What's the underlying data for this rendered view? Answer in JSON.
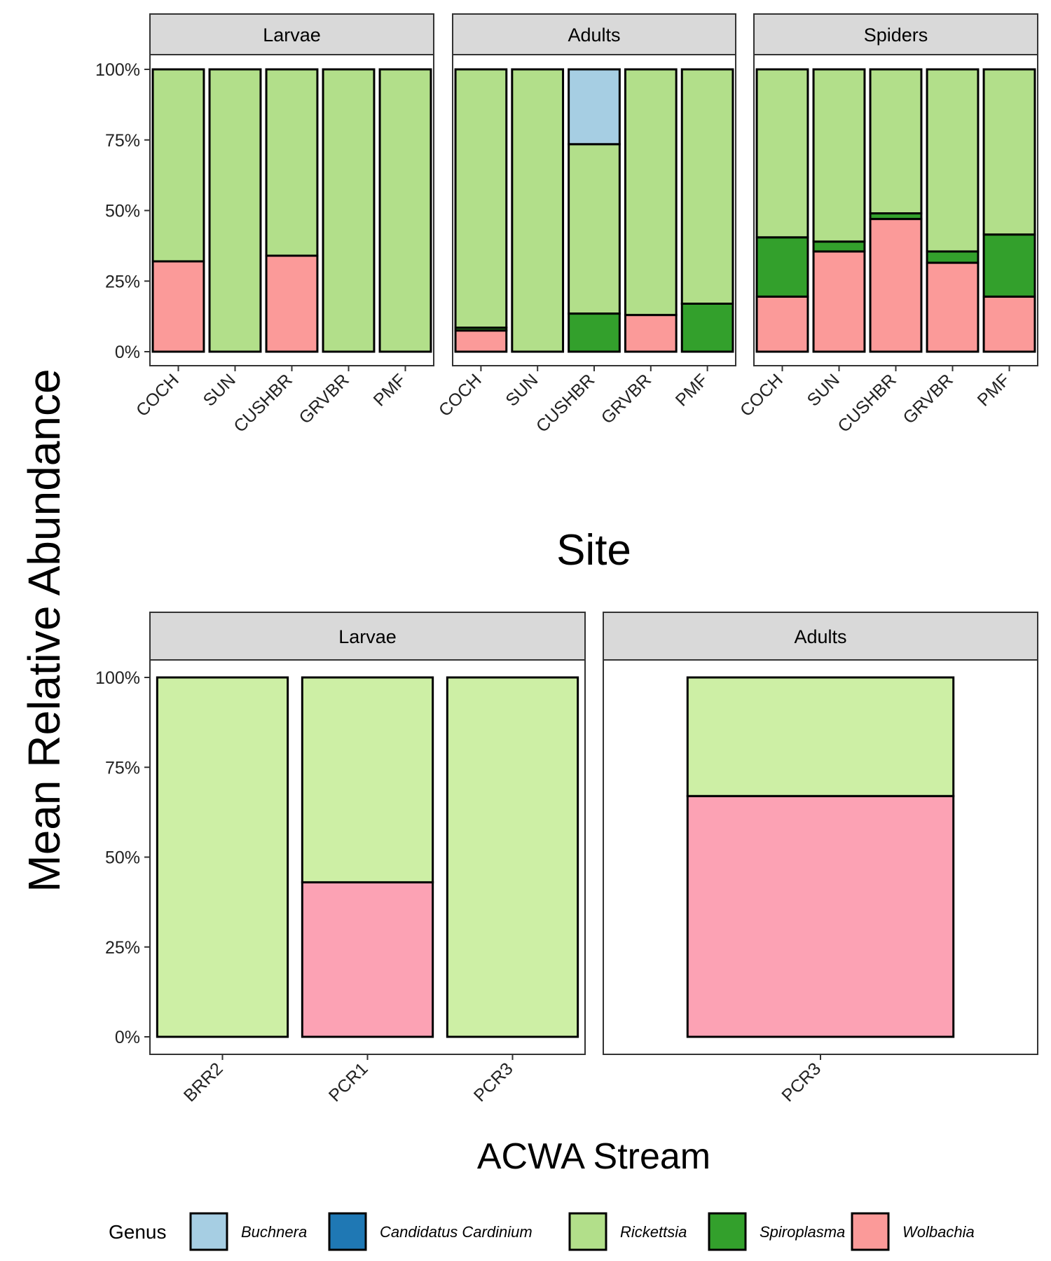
{
  "chart_data": [
    {
      "type": "bar",
      "stacked": true,
      "xlabel": "Site",
      "ylabel": "Mean Relative Abundance",
      "ylim": [
        0,
        1
      ],
      "yticks": [
        "0%",
        "25%",
        "50%",
        "75%",
        "100%"
      ],
      "grid": false,
      "panels": [
        {
          "label": "Larvae",
          "categories": [
            "COCH",
            "SUN",
            "CUSHBR",
            "GRVBR",
            "PMF"
          ],
          "series": [
            {
              "name": "Wolbachia",
              "values": [
                0.32,
                0,
                0.34,
                0,
                0
              ]
            },
            {
              "name": "Spiroplasma",
              "values": [
                0,
                0,
                0,
                0,
                0
              ]
            },
            {
              "name": "Rickettsia",
              "values": [
                0.68,
                1.0,
                0.66,
                1.0,
                1.0
              ]
            },
            {
              "name": "Candidatus Cardinium",
              "values": [
                0,
                0,
                0,
                0,
                0
              ]
            },
            {
              "name": "Buchnera",
              "values": [
                0,
                0,
                0,
                0,
                0
              ]
            }
          ]
        },
        {
          "label": "Adults",
          "categories": [
            "COCH",
            "SUN",
            "CUSHBR",
            "GRVBR",
            "PMF"
          ],
          "series": [
            {
              "name": "Wolbachia",
              "values": [
                0.075,
                0,
                0,
                0.13,
                0
              ]
            },
            {
              "name": "Spiroplasma",
              "values": [
                0.01,
                0,
                0.135,
                0,
                0.17
              ]
            },
            {
              "name": "Rickettsia",
              "values": [
                0.915,
                1.0,
                0.6,
                0.87,
                0.83
              ]
            },
            {
              "name": "Candidatus Cardinium",
              "values": [
                0,
                0,
                0,
                0,
                0
              ]
            },
            {
              "name": "Buchnera",
              "values": [
                0,
                0,
                0.265,
                0,
                0
              ]
            }
          ]
        },
        {
          "label": "Spiders",
          "categories": [
            "COCH",
            "SUN",
            "CUSHBR",
            "GRVBR",
            "PMF"
          ],
          "series": [
            {
              "name": "Wolbachia",
              "values": [
                0.195,
                0.355,
                0.47,
                0.315,
                0.195
              ]
            },
            {
              "name": "Spiroplasma",
              "values": [
                0.21,
                0.035,
                0.02,
                0.04,
                0.22
              ]
            },
            {
              "name": "Rickettsia",
              "values": [
                0.595,
                0.61,
                0.51,
                0.645,
                0.585
              ]
            },
            {
              "name": "Candidatus Cardinium",
              "values": [
                0,
                0,
                0,
                0,
                0
              ]
            },
            {
              "name": "Buchnera",
              "values": [
                0,
                0,
                0,
                0,
                0
              ]
            }
          ]
        }
      ]
    },
    {
      "type": "bar",
      "stacked": true,
      "xlabel": "ACWA Stream",
      "ylabel": "Mean Relative Abundance",
      "ylim": [
        0,
        1
      ],
      "yticks": [
        "0%",
        "25%",
        "50%",
        "75%",
        "100%"
      ],
      "grid": false,
      "panels": [
        {
          "label": "Larvae",
          "categories": [
            "BRR2",
            "PCR1",
            "PCR3"
          ],
          "series": [
            {
              "name": "Wolbachia",
              "values": [
                0,
                0.43,
                0
              ]
            },
            {
              "name": "Rickettsia",
              "values": [
                1.0,
                0.57,
                1.0
              ]
            }
          ]
        },
        {
          "label": "Adults",
          "categories": [
            "PCR3"
          ],
          "series": [
            {
              "name": "Wolbachia",
              "values": [
                0.67
              ]
            },
            {
              "name": "Rickettsia",
              "values": [
                0.33
              ]
            }
          ]
        }
      ]
    }
  ],
  "shared_ylabel": "Mean Relative Abundance",
  "colors": {
    "top": {
      "Buchnera": "#a6cee3",
      "Candidatus Cardinium": "#1f78b4",
      "Rickettsia": "#b2df8a",
      "Spiroplasma": "#33a02c",
      "Wolbachia": "#fb9a99"
    },
    "bottom": {
      "Rickettsia": "#cdefa5",
      "Wolbachia": "#fca2b4"
    }
  },
  "legend": {
    "title": "Genus",
    "position": "bottom",
    "items": [
      {
        "label": "Buchnera",
        "color": "#a6cee3"
      },
      {
        "label": "Candidatus Cardinium",
        "color": "#1f78b4"
      },
      {
        "label": "Rickettsia",
        "color": "#b2df8a"
      },
      {
        "label": "Spiroplasma",
        "color": "#33a02c"
      },
      {
        "label": "Wolbachia",
        "color": "#fb9a99"
      }
    ]
  }
}
